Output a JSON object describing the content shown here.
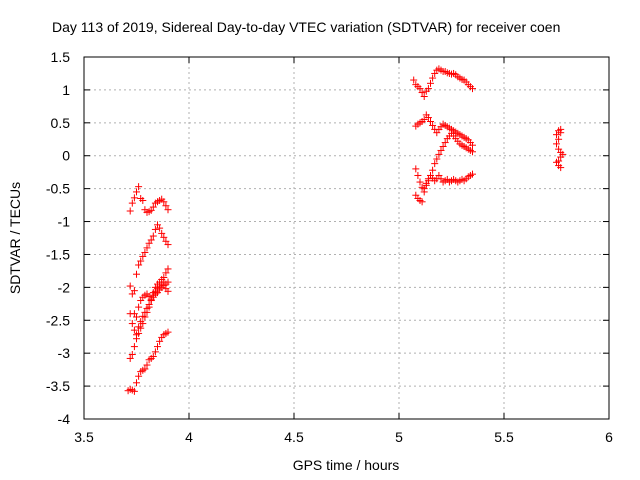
{
  "chart_data": {
    "type": "scatter",
    "title": "Day 113 of 2019, Sidereal Day-to-day VTEC variation (SDTVAR) for receiver coen",
    "xlabel": "GPS time / hours",
    "ylabel": "SDTVAR / TECUs",
    "xlim": [
      3.5,
      6
    ],
    "ylim": [
      -4,
      1.5
    ],
    "xticks": [
      "3.5",
      "4",
      "4.5",
      "5",
      "5.5",
      "6"
    ],
    "yticks": [
      "-4",
      "-3.5",
      "-3",
      "-2.5",
      "-2",
      "-1.5",
      "-1",
      "-0.5",
      "0",
      "0.5",
      "1",
      "1.5"
    ],
    "grid": true,
    "marker": "+",
    "marker_color": "#ff0000",
    "series": [
      {
        "points": [
          [
            3.72,
            -0.84
          ],
          [
            3.73,
            -0.72
          ],
          [
            3.74,
            -0.64
          ],
          [
            3.75,
            -0.55
          ],
          [
            3.76,
            -0.47
          ],
          [
            3.77,
            -0.65
          ],
          [
            3.78,
            -0.68
          ],
          [
            3.79,
            -0.82
          ],
          [
            3.8,
            -0.86
          ],
          [
            3.81,
            -0.85
          ],
          [
            3.82,
            -0.83
          ],
          [
            3.83,
            -0.78
          ],
          [
            3.84,
            -0.72
          ],
          [
            3.85,
            -0.7
          ],
          [
            3.86,
            -0.68
          ],
          [
            3.87,
            -0.66
          ],
          [
            3.88,
            -0.7
          ],
          [
            3.89,
            -0.76
          ],
          [
            3.9,
            -0.82
          ],
          [
            3.74,
            -2.05
          ],
          [
            3.75,
            -1.8
          ],
          [
            3.76,
            -1.66
          ],
          [
            3.77,
            -1.6
          ],
          [
            3.78,
            -1.53
          ],
          [
            3.79,
            -1.47
          ],
          [
            3.8,
            -1.4
          ],
          [
            3.81,
            -1.33
          ],
          [
            3.82,
            -1.28
          ],
          [
            3.83,
            -1.22
          ],
          [
            3.84,
            -1.12
          ],
          [
            3.85,
            -1.05
          ],
          [
            3.86,
            -1.1
          ],
          [
            3.87,
            -1.18
          ],
          [
            3.88,
            -1.24
          ],
          [
            3.89,
            -1.3
          ],
          [
            3.9,
            -1.35
          ],
          [
            3.72,
            -1.98
          ],
          [
            3.73,
            -2.1
          ],
          [
            3.74,
            -2.4
          ],
          [
            3.75,
            -2.45
          ],
          [
            3.76,
            -2.3
          ],
          [
            3.77,
            -2.2
          ],
          [
            3.78,
            -2.15
          ],
          [
            3.79,
            -2.12
          ],
          [
            3.8,
            -2.1
          ],
          [
            3.81,
            -2.14
          ],
          [
            3.82,
            -2.18
          ],
          [
            3.83,
            -2.08
          ],
          [
            3.84,
            -2.0
          ],
          [
            3.85,
            -1.95
          ],
          [
            3.86,
            -1.92
          ],
          [
            3.87,
            -1.88
          ],
          [
            3.88,
            -1.85
          ],
          [
            3.89,
            -1.78
          ],
          [
            3.9,
            -1.72
          ],
          [
            3.72,
            -2.4
          ],
          [
            3.73,
            -2.55
          ],
          [
            3.74,
            -2.65
          ],
          [
            3.75,
            -2.72
          ],
          [
            3.76,
            -2.6
          ],
          [
            3.77,
            -2.52
          ],
          [
            3.78,
            -2.44
          ],
          [
            3.79,
            -2.38
          ],
          [
            3.8,
            -2.32
          ],
          [
            3.81,
            -2.26
          ],
          [
            3.82,
            -2.2
          ],
          [
            3.83,
            -2.15
          ],
          [
            3.84,
            -2.1
          ],
          [
            3.85,
            -2.08
          ],
          [
            3.86,
            -2.04
          ],
          [
            3.87,
            -2.0
          ],
          [
            3.88,
            -1.97
          ],
          [
            3.89,
            -1.95
          ],
          [
            3.9,
            -1.92
          ],
          [
            3.72,
            -3.08
          ],
          [
            3.73,
            -3.02
          ],
          [
            3.74,
            -2.9
          ],
          [
            3.75,
            -2.78
          ],
          [
            3.76,
            -2.7
          ],
          [
            3.77,
            -2.62
          ],
          [
            3.78,
            -2.55
          ],
          [
            3.79,
            -2.45
          ],
          [
            3.8,
            -2.38
          ],
          [
            3.81,
            -2.3
          ],
          [
            3.82,
            -2.2
          ],
          [
            3.83,
            -2.12
          ],
          [
            3.84,
            -2.06
          ],
          [
            3.85,
            -2.02
          ],
          [
            3.86,
            -1.98
          ],
          [
            3.87,
            -1.95
          ],
          [
            3.88,
            -1.92
          ],
          [
            3.89,
            -2.02
          ],
          [
            3.9,
            -2.06
          ],
          [
            3.71,
            -3.57
          ],
          [
            3.72,
            -3.55
          ],
          [
            3.73,
            -3.56
          ],
          [
            3.74,
            -3.58
          ],
          [
            3.75,
            -3.45
          ],
          [
            3.76,
            -3.35
          ],
          [
            3.77,
            -3.28
          ],
          [
            3.78,
            -3.26
          ],
          [
            3.79,
            -3.24
          ],
          [
            3.8,
            -3.18
          ],
          [
            3.81,
            -3.1
          ],
          [
            3.82,
            -3.08
          ],
          [
            3.83,
            -3.05
          ],
          [
            3.84,
            -2.98
          ],
          [
            3.85,
            -2.9
          ],
          [
            3.86,
            -2.82
          ],
          [
            3.87,
            -2.76
          ],
          [
            3.88,
            -2.72
          ],
          [
            3.89,
            -2.7
          ],
          [
            3.9,
            -2.68
          ],
          [
            5.07,
            1.15
          ],
          [
            5.08,
            1.08
          ],
          [
            5.09,
            1.05
          ],
          [
            5.1,
            1.02
          ],
          [
            5.11,
            0.96
          ],
          [
            5.12,
            0.9
          ],
          [
            5.13,
            0.98
          ],
          [
            5.14,
            1.02
          ],
          [
            5.15,
            1.1
          ],
          [
            5.16,
            1.18
          ],
          [
            5.17,
            1.25
          ],
          [
            5.18,
            1.3
          ],
          [
            5.19,
            1.32
          ],
          [
            5.2,
            1.3
          ],
          [
            5.21,
            1.28
          ],
          [
            5.22,
            1.28
          ],
          [
            5.23,
            1.26
          ],
          [
            5.24,
            1.25
          ],
          [
            5.25,
            1.24
          ],
          [
            5.26,
            1.25
          ],
          [
            5.27,
            1.23
          ],
          [
            5.28,
            1.2
          ],
          [
            5.29,
            1.18
          ],
          [
            5.3,
            1.16
          ],
          [
            5.31,
            1.15
          ],
          [
            5.32,
            1.12
          ],
          [
            5.33,
            1.08
          ],
          [
            5.34,
            1.05
          ],
          [
            5.35,
            1.02
          ],
          [
            5.08,
            0.45
          ],
          [
            5.09,
            0.48
          ],
          [
            5.1,
            0.5
          ],
          [
            5.11,
            0.52
          ],
          [
            5.12,
            0.55
          ],
          [
            5.13,
            0.62
          ],
          [
            5.14,
            0.58
          ],
          [
            5.15,
            0.52
          ],
          [
            5.16,
            0.46
          ],
          [
            5.17,
            0.4
          ],
          [
            5.18,
            0.35
          ],
          [
            5.19,
            0.4
          ],
          [
            5.2,
            0.44
          ],
          [
            5.21,
            0.48
          ],
          [
            5.22,
            0.46
          ],
          [
            5.23,
            0.44
          ],
          [
            5.24,
            0.42
          ],
          [
            5.25,
            0.4
          ],
          [
            5.26,
            0.38
          ],
          [
            5.27,
            0.36
          ],
          [
            5.28,
            0.34
          ],
          [
            5.29,
            0.32
          ],
          [
            5.3,
            0.3
          ],
          [
            5.31,
            0.28
          ],
          [
            5.32,
            0.26
          ],
          [
            5.33,
            0.24
          ],
          [
            5.34,
            0.2
          ],
          [
            5.35,
            0.16
          ],
          [
            5.08,
            -0.2
          ],
          [
            5.09,
            -0.3
          ],
          [
            5.1,
            -0.4
          ],
          [
            5.11,
            -0.48
          ],
          [
            5.12,
            -0.5
          ],
          [
            5.13,
            -0.45
          ],
          [
            5.14,
            -0.38
          ],
          [
            5.15,
            -0.3
          ],
          [
            5.16,
            -0.22
          ],
          [
            5.17,
            -0.12
          ],
          [
            5.18,
            -0.05
          ],
          [
            5.19,
            0.02
          ],
          [
            5.2,
            0.08
          ],
          [
            5.21,
            0.14
          ],
          [
            5.22,
            0.2
          ],
          [
            5.23,
            0.26
          ],
          [
            5.24,
            0.3
          ],
          [
            5.25,
            0.34
          ],
          [
            5.26,
            0.3
          ],
          [
            5.27,
            0.26
          ],
          [
            5.28,
            0.22
          ],
          [
            5.29,
            0.18
          ],
          [
            5.3,
            0.16
          ],
          [
            5.31,
            0.14
          ],
          [
            5.32,
            0.12
          ],
          [
            5.33,
            0.1
          ],
          [
            5.34,
            0.08
          ],
          [
            5.35,
            0.06
          ],
          [
            5.08,
            -0.6
          ],
          [
            5.09,
            -0.65
          ],
          [
            5.1,
            -0.68
          ],
          [
            5.11,
            -0.7
          ],
          [
            5.12,
            -0.55
          ],
          [
            5.13,
            -0.42
          ],
          [
            5.14,
            -0.35
          ],
          [
            5.15,
            -0.3
          ],
          [
            5.16,
            -0.34
          ],
          [
            5.17,
            -0.38
          ],
          [
            5.18,
            -0.35
          ],
          [
            5.19,
            -0.3
          ],
          [
            5.2,
            -0.35
          ],
          [
            5.21,
            -0.4
          ],
          [
            5.22,
            -0.38
          ],
          [
            5.23,
            -0.36
          ],
          [
            5.24,
            -0.4
          ],
          [
            5.25,
            -0.38
          ],
          [
            5.26,
            -0.36
          ],
          [
            5.27,
            -0.38
          ],
          [
            5.28,
            -0.4
          ],
          [
            5.29,
            -0.38
          ],
          [
            5.3,
            -0.36
          ],
          [
            5.31,
            -0.38
          ],
          [
            5.32,
            -0.35
          ],
          [
            5.33,
            -0.32
          ],
          [
            5.34,
            -0.3
          ],
          [
            5.35,
            -0.28
          ],
          [
            5.75,
            0.32
          ],
          [
            5.76,
            0.38
          ],
          [
            5.77,
            0.4
          ],
          [
            5.77,
            0.35
          ],
          [
            5.76,
            0.25
          ],
          [
            5.75,
            0.18
          ],
          [
            5.76,
            0.1
          ],
          [
            5.77,
            0.05
          ],
          [
            5.78,
            0.02
          ],
          [
            5.77,
            -0.02
          ],
          [
            5.76,
            -0.08
          ],
          [
            5.75,
            -0.1
          ],
          [
            5.76,
            -0.15
          ],
          [
            5.77,
            -0.18
          ]
        ]
      }
    ]
  }
}
